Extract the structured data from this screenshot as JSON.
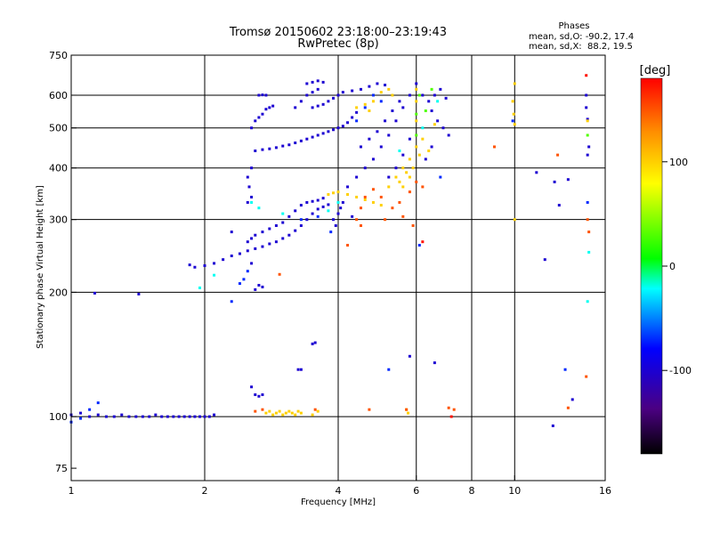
{
  "chart_data": {
    "type": "scatter",
    "title": "Tromsø 20150602 23:18:00–23:19:43",
    "subtitle": "RwPretec (8p)",
    "phase_info": {
      "heading": "Phases",
      "line1": "mean, sd,O: -90.2, 17.4",
      "line2": "mean, sd,X:  88.2, 19.5"
    },
    "xlabel": "Frequency [MHz]",
    "ylabel": "Stationary phase Virtual Height [km]",
    "x_scale": "log",
    "y_scale": "log",
    "xlim": [
      1,
      16
    ],
    "ylim": [
      70,
      750
    ],
    "x_ticks": [
      1,
      2,
      4,
      6,
      8,
      10,
      16
    ],
    "x_tick_labels": [
      "1",
      "2",
      "4",
      "6",
      "8",
      "10",
      "16"
    ],
    "y_ticks": [
      75,
      100,
      200,
      300,
      400,
      500,
      600,
      750
    ],
    "y_tick_labels": [
      "75",
      "100",
      "200",
      "300",
      "400",
      "500",
      "600",
      "750"
    ],
    "grid_x": [
      2,
      4,
      6,
      8,
      10
    ],
    "grid_y": [
      100,
      200,
      300,
      400,
      500,
      600
    ],
    "colorbar": {
      "label": "[deg]",
      "range": [
        -180,
        180
      ],
      "ticks": [
        100,
        0,
        -100
      ],
      "tick_labels": [
        "100",
        "0",
        "-100"
      ],
      "colors": [
        "#000000",
        "#4b0082",
        "#0000ff",
        "#00ffff",
        "#00ff00",
        "#ffff00",
        "#ff8c00",
        "#ff0000"
      ]
    },
    "series": [
      {
        "phase": -100,
        "points": [
          [
            1.0,
            101
          ],
          [
            1.05,
            102
          ],
          [
            1.1,
            100
          ],
          [
            1.15,
            101
          ],
          [
            1.2,
            100
          ],
          [
            1.25,
            100
          ],
          [
            1.3,
            101
          ],
          [
            1.35,
            100
          ],
          [
            1.4,
            100
          ],
          [
            1.45,
            100
          ],
          [
            1.5,
            100
          ],
          [
            1.55,
            101
          ],
          [
            1.6,
            100
          ],
          [
            1.65,
            100
          ],
          [
            1.7,
            100
          ],
          [
            1.75,
            100
          ],
          [
            1.8,
            100
          ],
          [
            1.85,
            100
          ],
          [
            1.9,
            100
          ],
          [
            1.95,
            100
          ],
          [
            2.0,
            100
          ],
          [
            2.05,
            100
          ],
          [
            2.1,
            101
          ],
          [
            1.13,
            199
          ],
          [
            1.42,
            198
          ],
          [
            2.6,
            113
          ],
          [
            2.65,
            112
          ],
          [
            2.7,
            113
          ],
          [
            3.25,
            130
          ],
          [
            3.3,
            130
          ],
          [
            3.5,
            150
          ],
          [
            3.55,
            151
          ],
          [
            2.55,
            118
          ],
          [
            1.85,
            233
          ],
          [
            1.9,
            230
          ],
          [
            2.0,
            232
          ],
          [
            2.1,
            235
          ],
          [
            2.2,
            240
          ],
          [
            2.3,
            245
          ],
          [
            2.4,
            248
          ],
          [
            2.5,
            252
          ],
          [
            2.6,
            255
          ],
          [
            2.7,
            258
          ],
          [
            2.8,
            262
          ],
          [
            2.9,
            265
          ],
          [
            3.0,
            270
          ],
          [
            3.1,
            275
          ],
          [
            3.2,
            282
          ],
          [
            3.3,
            290
          ],
          [
            3.4,
            300
          ],
          [
            3.5,
            310
          ],
          [
            3.6,
            318
          ],
          [
            3.7,
            322
          ],
          [
            3.8,
            326
          ],
          [
            2.6,
            203
          ],
          [
            2.7,
            206
          ],
          [
            2.65,
            208
          ],
          [
            2.5,
            265
          ],
          [
            2.55,
            270
          ],
          [
            2.6,
            275
          ],
          [
            2.7,
            280
          ],
          [
            2.8,
            285
          ],
          [
            2.9,
            290
          ],
          [
            3.0,
            295
          ],
          [
            3.1,
            305
          ],
          [
            3.2,
            315
          ],
          [
            3.3,
            325
          ],
          [
            3.4,
            330
          ],
          [
            3.5,
            332
          ],
          [
            3.6,
            334
          ],
          [
            3.7,
            338
          ],
          [
            2.5,
            330
          ],
          [
            2.55,
            340
          ],
          [
            2.52,
            360
          ],
          [
            2.5,
            380
          ],
          [
            2.55,
            400
          ],
          [
            2.6,
            440
          ],
          [
            2.7,
            443
          ],
          [
            2.8,
            445
          ],
          [
            2.9,
            448
          ],
          [
            3.0,
            452
          ],
          [
            3.1,
            455
          ],
          [
            3.2,
            460
          ],
          [
            3.3,
            465
          ],
          [
            3.4,
            470
          ],
          [
            3.5,
            475
          ],
          [
            3.6,
            480
          ],
          [
            3.7,
            485
          ],
          [
            3.8,
            490
          ],
          [
            3.9,
            495
          ],
          [
            4.0,
            500
          ],
          [
            4.1,
            505
          ],
          [
            4.2,
            515
          ],
          [
            4.3,
            530
          ],
          [
            4.4,
            545
          ],
          [
            2.55,
            500
          ],
          [
            2.6,
            520
          ],
          [
            2.65,
            530
          ],
          [
            2.7,
            540
          ],
          [
            2.75,
            555
          ],
          [
            2.8,
            560
          ],
          [
            2.85,
            565
          ],
          [
            2.65,
            600
          ],
          [
            2.7,
            601
          ],
          [
            2.75,
            600
          ],
          [
            3.2,
            560
          ],
          [
            3.3,
            580
          ],
          [
            3.4,
            600
          ],
          [
            3.5,
            610
          ],
          [
            3.6,
            620
          ],
          [
            3.4,
            640
          ],
          [
            3.5,
            645
          ],
          [
            3.6,
            650
          ],
          [
            3.7,
            645
          ],
          [
            3.5,
            560
          ],
          [
            3.6,
            565
          ],
          [
            3.7,
            570
          ],
          [
            3.8,
            580
          ],
          [
            3.9,
            590
          ],
          [
            4.0,
            600
          ],
          [
            4.1,
            610
          ],
          [
            4.3,
            615
          ],
          [
            4.5,
            620
          ],
          [
            4.7,
            630
          ],
          [
            4.9,
            640
          ],
          [
            5.1,
            635
          ],
          [
            4.2,
            360
          ],
          [
            4.4,
            380
          ],
          [
            4.6,
            400
          ],
          [
            4.8,
            420
          ],
          [
            5.0,
            450
          ],
          [
            5.2,
            480
          ],
          [
            5.4,
            520
          ],
          [
            5.6,
            560
          ],
          [
            5.8,
            600
          ],
          [
            6.0,
            640
          ],
          [
            4.5,
            450
          ],
          [
            4.7,
            470
          ],
          [
            4.9,
            490
          ],
          [
            5.1,
            520
          ],
          [
            5.3,
            550
          ],
          [
            5.5,
            580
          ],
          [
            5.2,
            380
          ],
          [
            5.4,
            400
          ],
          [
            5.6,
            430
          ],
          [
            5.8,
            470
          ],
          [
            6.2,
            600
          ],
          [
            6.4,
            580
          ],
          [
            6.6,
            600
          ],
          [
            6.8,
            620
          ],
          [
            7.0,
            590
          ],
          [
            6.5,
            550
          ],
          [
            6.7,
            520
          ],
          [
            6.9,
            500
          ],
          [
            7.1,
            480
          ],
          [
            6.3,
            420
          ],
          [
            6.5,
            450
          ],
          [
            2.55,
            235
          ],
          [
            2.3,
            280
          ],
          [
            3.9,
            300
          ],
          [
            4.0,
            310
          ],
          [
            4.05,
            320
          ],
          [
            4.1,
            330
          ],
          [
            3.95,
            290
          ],
          [
            4.3,
            305
          ],
          [
            5.8,
            140
          ],
          [
            6.6,
            135
          ],
          [
            11.2,
            390
          ],
          [
            11.7,
            240
          ],
          [
            12.3,
            370
          ],
          [
            12.6,
            325
          ],
          [
            13.2,
            375
          ],
          [
            14.5,
            560
          ],
          [
            14.6,
            525
          ],
          [
            14.7,
            450
          ],
          [
            14.6,
            430
          ],
          [
            14.5,
            600
          ],
          [
            13.5,
            110
          ],
          [
            12.2,
            95
          ]
        ]
      },
      {
        "phase": -70,
        "points": [
          [
            1.0,
            97
          ],
          [
            1.05,
            99
          ],
          [
            1.1,
            104
          ],
          [
            1.15,
            108
          ],
          [
            2.3,
            190
          ],
          [
            2.4,
            210
          ],
          [
            2.45,
            215
          ],
          [
            2.5,
            225
          ],
          [
            3.3,
            300
          ],
          [
            3.6,
            305
          ],
          [
            3.85,
            280
          ],
          [
            4.4,
            520
          ],
          [
            4.6,
            560
          ],
          [
            4.8,
            600
          ],
          [
            5.0,
            580
          ],
          [
            6.1,
            260
          ],
          [
            6.8,
            380
          ],
          [
            9.9,
            520
          ],
          [
            13.0,
            130
          ],
          [
            14.6,
            330
          ],
          [
            5.2,
            130
          ]
        ]
      },
      {
        "phase": -20,
        "points": [
          [
            1.95,
            205
          ],
          [
            2.1,
            220
          ],
          [
            2.55,
            330
          ],
          [
            2.65,
            320
          ],
          [
            3.0,
            310
          ],
          [
            3.8,
            315
          ],
          [
            4.0,
            330
          ],
          [
            5.5,
            440
          ],
          [
            6.2,
            500
          ],
          [
            6.7,
            580
          ],
          [
            14.6,
            190
          ],
          [
            14.7,
            250
          ]
        ]
      },
      {
        "phase": 30,
        "points": [
          [
            6.0,
            480
          ],
          [
            6.0,
            540
          ],
          [
            6.1,
            600
          ],
          [
            6.3,
            550
          ],
          [
            6.5,
            620
          ],
          [
            14.6,
            480
          ]
        ]
      },
      {
        "phase": 100,
        "points": [
          [
            2.75,
            102
          ],
          [
            2.8,
            103
          ],
          [
            2.85,
            101
          ],
          [
            2.9,
            102
          ],
          [
            2.95,
            103
          ],
          [
            3.0,
            101
          ],
          [
            3.05,
            102
          ],
          [
            3.1,
            103
          ],
          [
            3.15,
            102
          ],
          [
            3.2,
            101
          ],
          [
            3.25,
            103
          ],
          [
            3.3,
            102
          ],
          [
            3.5,
            101
          ],
          [
            3.6,
            103
          ],
          [
            3.8,
            345
          ],
          [
            3.9,
            348
          ],
          [
            4.0,
            350
          ],
          [
            4.2,
            345
          ],
          [
            4.4,
            340
          ],
          [
            4.6,
            335
          ],
          [
            4.8,
            330
          ],
          [
            5.0,
            325
          ],
          [
            5.2,
            360
          ],
          [
            5.4,
            380
          ],
          [
            5.6,
            400
          ],
          [
            5.8,
            420
          ],
          [
            6.0,
            450
          ],
          [
            6.0,
            520
          ],
          [
            6.0,
            580
          ],
          [
            6.0,
            620
          ],
          [
            6.2,
            470
          ],
          [
            6.4,
            440
          ],
          [
            6.6,
            510
          ],
          [
            5.3,
            600
          ],
          [
            5.2,
            620
          ],
          [
            5.0,
            610
          ],
          [
            4.8,
            580
          ],
          [
            4.6,
            570
          ],
          [
            4.4,
            560
          ],
          [
            4.7,
            550
          ],
          [
            5.6,
            360
          ],
          [
            5.8,
            380
          ],
          [
            5.9,
            400
          ],
          [
            6.1,
            430
          ],
          [
            5.5,
            370
          ],
          [
            5.7,
            390
          ],
          [
            5.7,
            104
          ],
          [
            5.75,
            102
          ],
          [
            9.9,
            580
          ],
          [
            9.95,
            540
          ],
          [
            10.0,
            510
          ],
          [
            10.0,
            640
          ],
          [
            10.0,
            300
          ],
          [
            14.6,
            520
          ]
        ]
      },
      {
        "phase": 150,
        "points": [
          [
            2.6,
            103
          ],
          [
            2.7,
            104
          ],
          [
            3.55,
            104
          ],
          [
            4.4,
            300
          ],
          [
            4.5,
            320
          ],
          [
            4.6,
            340
          ],
          [
            4.8,
            355
          ],
          [
            5.0,
            340
          ],
          [
            5.1,
            300
          ],
          [
            5.3,
            320
          ],
          [
            5.5,
            330
          ],
          [
            5.6,
            305
          ],
          [
            5.8,
            350
          ],
          [
            6.0,
            370
          ],
          [
            6.2,
            360
          ],
          [
            4.2,
            260
          ],
          [
            4.5,
            290
          ],
          [
            7.1,
            105
          ],
          [
            7.3,
            104
          ],
          [
            9.0,
            450
          ],
          [
            12.5,
            430
          ],
          [
            14.6,
            300
          ],
          [
            14.7,
            280
          ],
          [
            13.2,
            105
          ],
          [
            14.5,
            125
          ],
          [
            2.95,
            221
          ],
          [
            4.7,
            104
          ],
          [
            5.7,
            104
          ],
          [
            5.9,
            290
          ]
        ]
      },
      {
        "phase": 175,
        "points": [
          [
            6.2,
            265
          ],
          [
            7.2,
            100
          ],
          [
            14.5,
            670
          ]
        ]
      }
    ]
  }
}
